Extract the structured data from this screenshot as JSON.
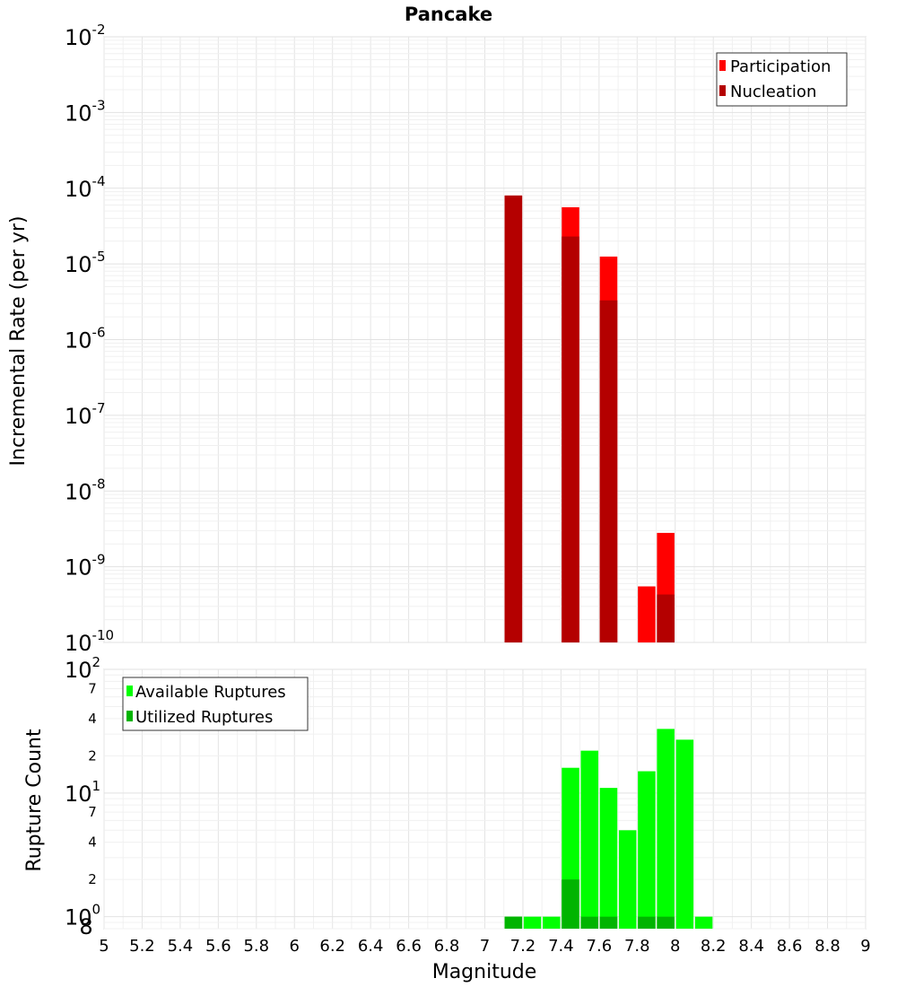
{
  "chart_data": [
    {
      "type": "bar",
      "title": "Pancake",
      "xlabel": "Magnitude",
      "ylabel": "Incremental Rate (per yr)",
      "yscale": "log",
      "ylim": [
        1e-10,
        0.01
      ],
      "xlim": [
        5,
        9
      ],
      "bin_width": 0.1,
      "x_ticks": [
        "5",
        "5.2",
        "5.4",
        "5.6",
        "5.8",
        "6",
        "6.2",
        "6.4",
        "6.6",
        "6.8",
        "7",
        "7.2",
        "7.4",
        "7.6",
        "7.8",
        "8",
        "8.2",
        "8.4",
        "8.6",
        "8.8",
        "9"
      ],
      "y_ticks": [
        {
          "base": "10",
          "exp": "-2"
        },
        {
          "base": "10",
          "exp": "-3"
        },
        {
          "base": "10",
          "exp": "-4"
        },
        {
          "base": "10",
          "exp": "-5"
        },
        {
          "base": "10",
          "exp": "-6"
        },
        {
          "base": "10",
          "exp": "-7"
        },
        {
          "base": "10",
          "exp": "-8"
        },
        {
          "base": "10",
          "exp": "-9"
        },
        {
          "base": "10",
          "exp": "-10"
        }
      ],
      "legend": [
        "Participation",
        "Nucleation"
      ],
      "series": [
        {
          "name": "Participation",
          "color": "#ff0000",
          "x": [
            7.15,
            7.45,
            7.65,
            7.85,
            7.95
          ],
          "values": [
            8e-05,
            5.6e-05,
            1.25e-05,
            5.5e-10,
            2.8e-09
          ]
        },
        {
          "name": "Nucleation",
          "color": "#b40000",
          "x": [
            7.15,
            7.45,
            7.65,
            7.95
          ],
          "values": [
            8e-05,
            2.3e-05,
            3.3e-06,
            4.3e-10
          ]
        }
      ]
    },
    {
      "type": "bar",
      "title": "",
      "xlabel": "Magnitude",
      "ylabel": "Rupture Count",
      "yscale": "log",
      "ylim": [
        0.8,
        100
      ],
      "xlim": [
        5,
        9
      ],
      "bin_width": 0.1,
      "y_ticks": [
        {
          "base": "10",
          "exp": "2"
        },
        {
          "base": "10",
          "exp": "1"
        },
        {
          "base": "10",
          "exp": "0"
        }
      ],
      "y_minor_labels": [
        "7",
        "4",
        "2",
        "7",
        "4",
        "2",
        "8"
      ],
      "legend": [
        "Available Ruptures",
        "Utilized Ruptures"
      ],
      "series": [
        {
          "name": "Available Ruptures",
          "color": "#00ff00",
          "x": [
            7.15,
            7.25,
            7.35,
            7.45,
            7.55,
            7.65,
            7.75,
            7.85,
            7.95,
            8.05,
            8.15
          ],
          "values": [
            1,
            1,
            1,
            16,
            22,
            11,
            5,
            15,
            33,
            27,
            1
          ]
        },
        {
          "name": "Utilized Ruptures",
          "color": "#00b400",
          "x": [
            7.15,
            7.45,
            7.55,
            7.65,
            7.85,
            7.95
          ],
          "values": [
            1,
            2,
            1,
            1,
            1,
            1
          ]
        }
      ]
    }
  ]
}
